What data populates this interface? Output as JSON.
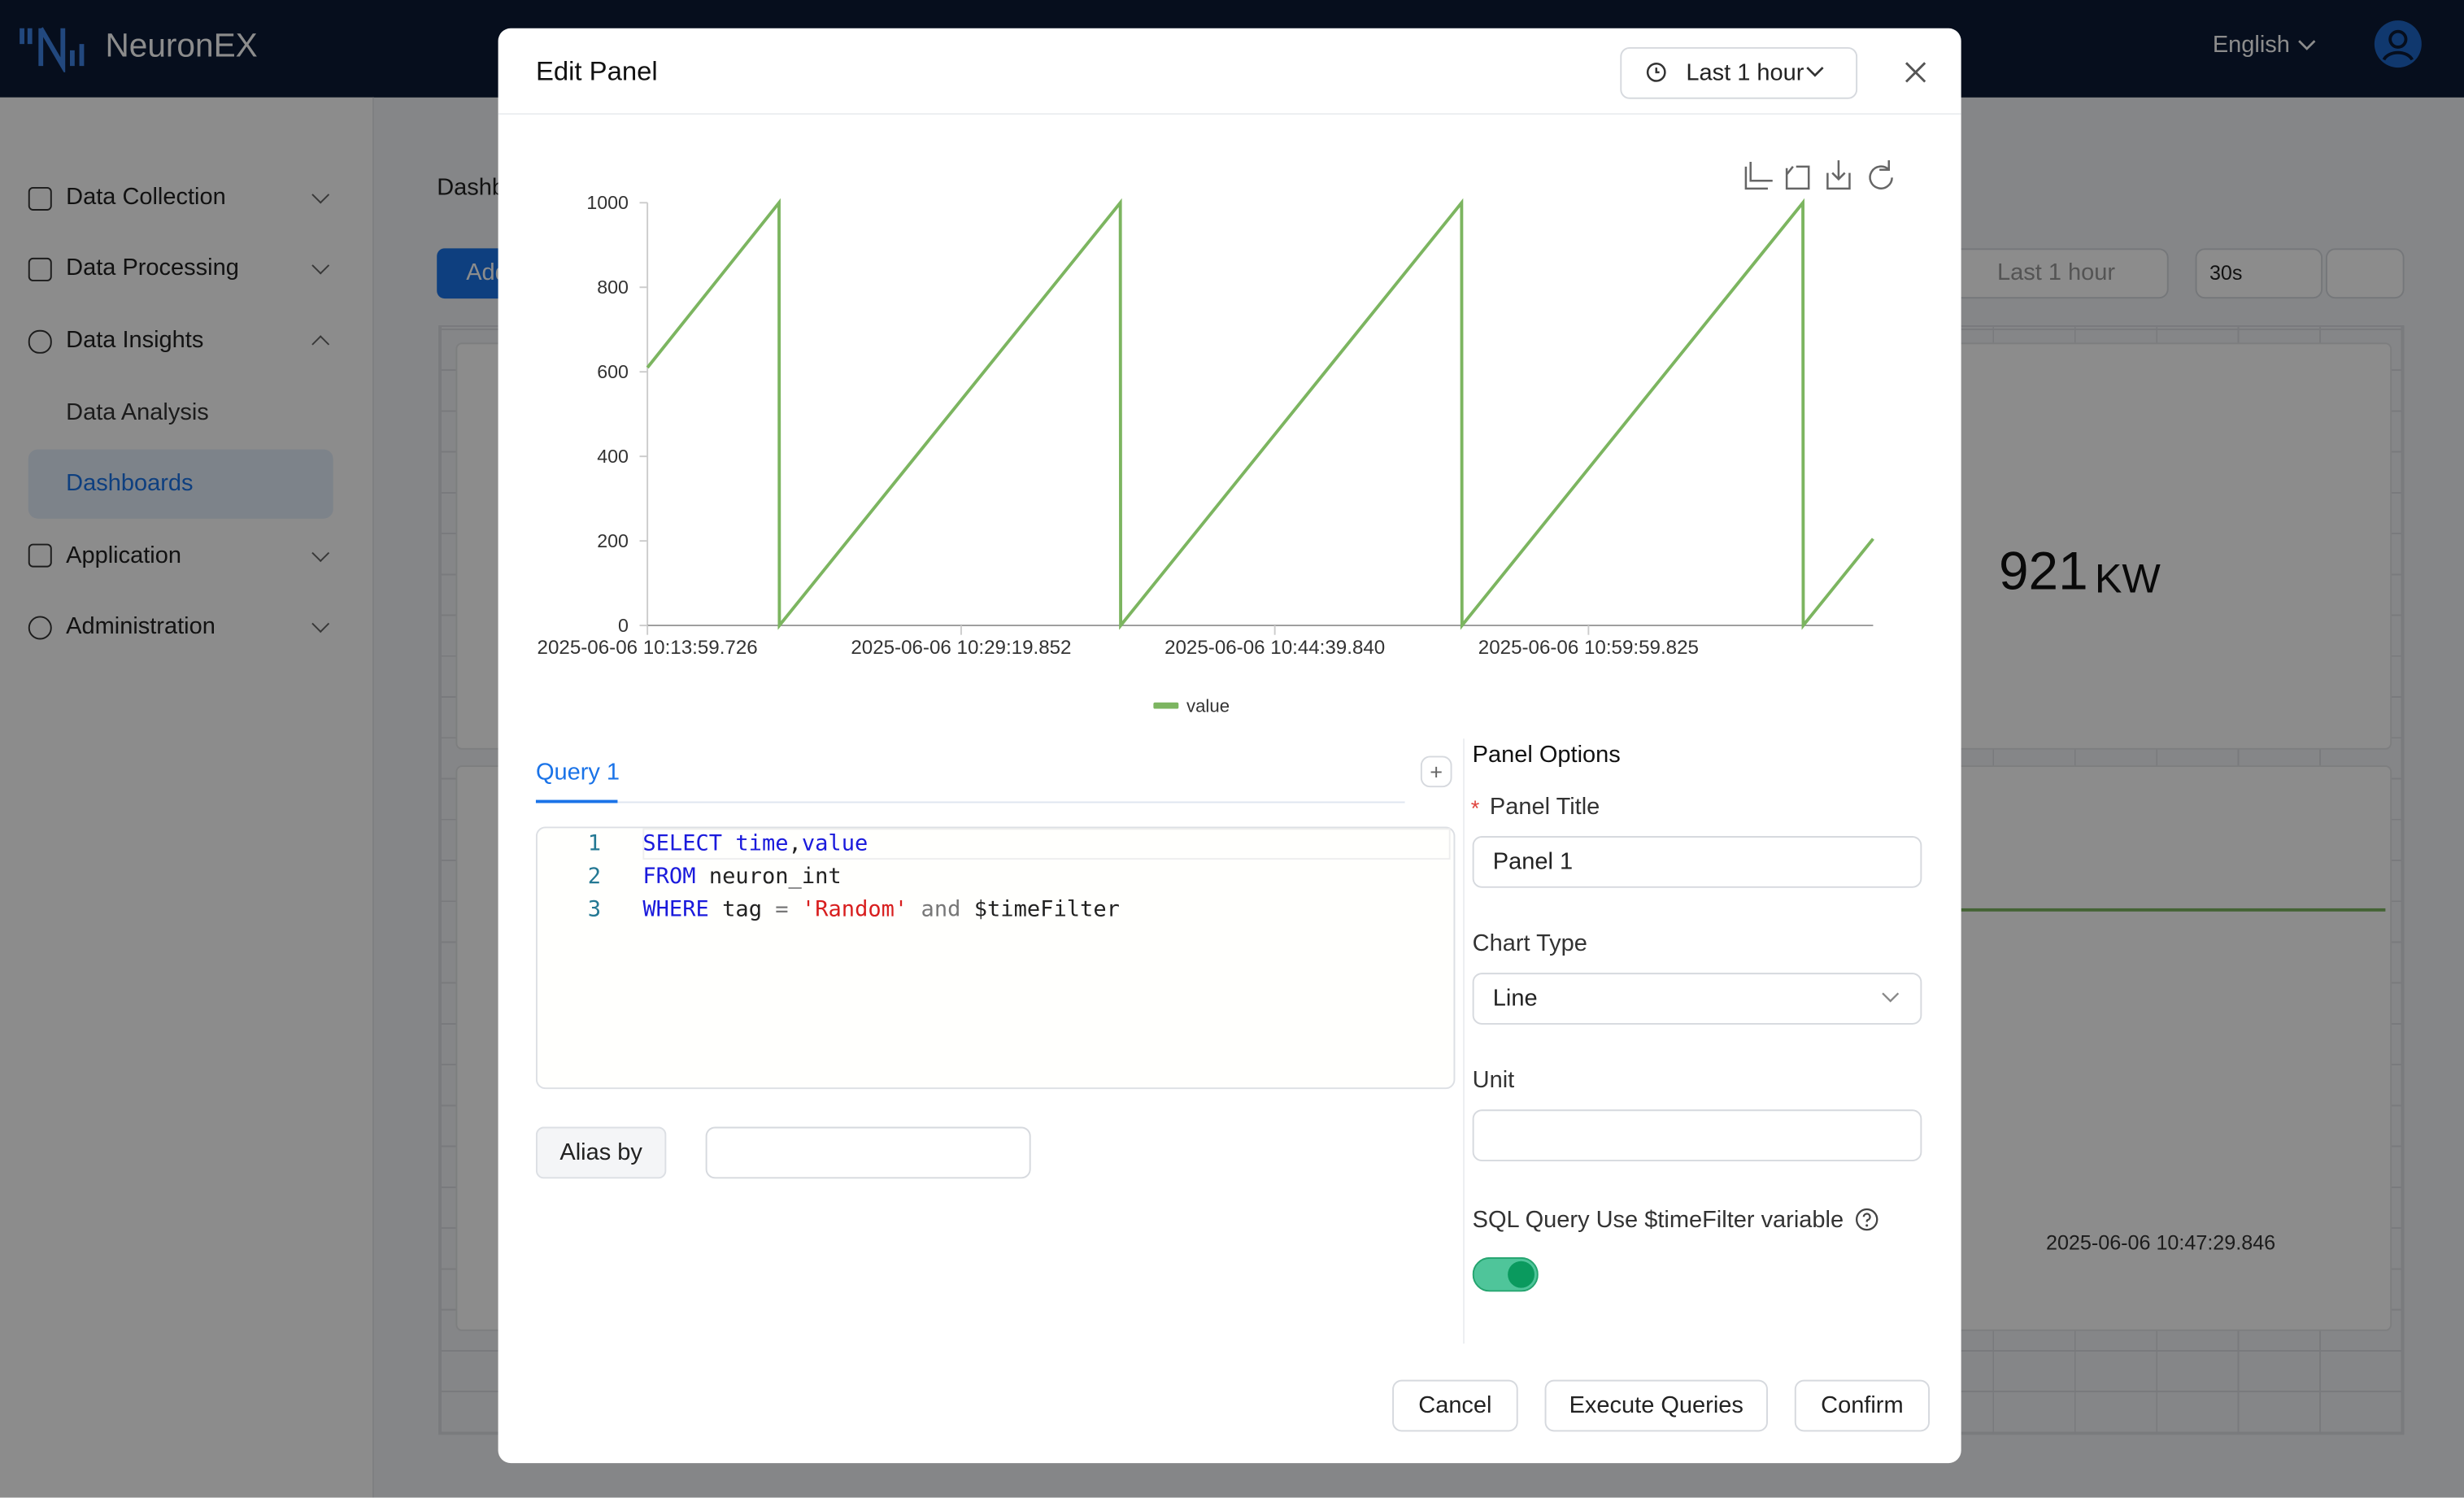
{
  "app": {
    "brand": "NeuronEX",
    "language": "English"
  },
  "sidebar": {
    "items": [
      "Data Collection",
      "Data Processing",
      "Data Insights",
      "Application",
      "Administration"
    ],
    "sub_items": [
      "Data Analysis",
      "Dashboards"
    ]
  },
  "dashboard": {
    "title": "Dashboards",
    "add_button": "Add",
    "time_range": "Last 1 hour",
    "refresh": "30s",
    "stat_value": "921",
    "stat_unit": "KW",
    "axis_label": "2025-06-06 10:47:29.846"
  },
  "modal": {
    "title": "Edit Panel",
    "time_range": "Last 1 hour",
    "query": {
      "tab": "Query 1",
      "line_numbers": [
        1,
        2,
        3
      ],
      "code": [
        [
          "SELECT",
          "time",
          ",",
          "value"
        ],
        [
          "FROM",
          "neuron_int"
        ],
        [
          "WHERE",
          "tag",
          "=",
          "'Random'",
          "and",
          "$timeFilter"
        ]
      ],
      "alias_label": "Alias by"
    },
    "options": {
      "heading": "Panel Options",
      "panel_title_label": "Panel Title",
      "panel_title_value": "Panel 1",
      "chart_type_label": "Chart Type",
      "chart_type_value": "Line",
      "unit_label": "Unit",
      "timefilter_label": "SQL Query Use $timeFilter variable"
    },
    "buttons": [
      "Cancel",
      "Execute Queries",
      "Confirm"
    ]
  },
  "chart_data": {
    "type": "line",
    "x": [
      "2025-06-06 10:13:59.726",
      "2025-06-06 10:20:25.726",
      "2025-06-06 10:20:26.726",
      "2025-06-06 10:37:06.726",
      "2025-06-06 10:37:07.726",
      "2025-06-06 10:53:47.726",
      "2025-06-06 10:53:48.726",
      "2025-06-06 11:10:28.726",
      "2025-06-06 11:10:29.726",
      "2025-06-06 11:13:54.726"
    ],
    "series": [
      {
        "name": "value",
        "color": "#7cb560",
        "values": [
          610,
          1000,
          0,
          1000,
          0,
          1000,
          0,
          1000,
          0,
          205
        ]
      }
    ],
    "xlim": [
      "2025-06-06 10:13:59.726",
      "2025-06-06 11:13:54.726"
    ],
    "xticks": [
      "2025-06-06 10:13:59.726",
      "2025-06-06 10:29:19.852",
      "2025-06-06 10:44:39.840",
      "2025-06-06 10:59:59.825"
    ],
    "ylim": [
      0,
      1000
    ],
    "yticks": [
      0,
      200,
      400,
      600,
      800,
      1000
    ],
    "grid": false,
    "legend": "bottom"
  }
}
